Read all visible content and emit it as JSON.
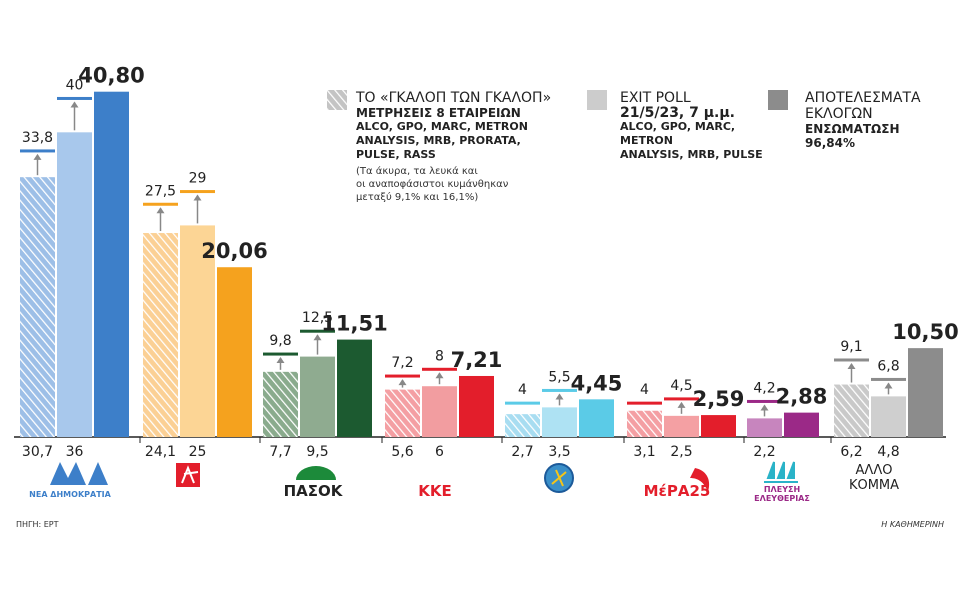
{
  "chart_data": {
    "type": "range-bar",
    "categories": [
      "ΝΕΑ ΔΗΜΟΚΡΑΤΙΑ",
      null,
      "ΠΑΣΟΚ",
      "ΚΚΕ",
      null,
      "ΜέΡΑ25",
      "ΠΛΕΥΣΗ ΕΛΕΥΘΕΡΙΑΣ",
      "ΑΛΛΟ ΚΟΜΜΑ"
    ],
    "ylim": [
      0,
      41
    ],
    "series": [
      {
        "name": "ΤΟ «ΓΚΑΛΟΠ ΤΩΝ ΓΚΑΛΟΠ»",
        "subtitle": "ΜΕΤΡΗΣΕΙΣ 8 ΕΤΑΙΡΕΙΩΝ",
        "details": [
          "ALCO, GPO, MARC, METRON",
          "ANALYSIS, MRB, PRORATA,",
          "PULSE, RASS"
        ],
        "note": [
          "(Τα άκυρα, τα λευκά και",
          "οι αναποφάσιστοι κυμάνθηκαν",
          "μεταξύ 9,1% και 16,1%)"
        ],
        "color": "#c4c4c4",
        "hatched": true,
        "colors": [
          "#9dbfe7",
          "#fbd095",
          "#8aab8d",
          "#f49fa3",
          "#a8ddf1",
          "#f49fa3",
          null,
          "#c9c9c9"
        ],
        "marker_colors": [
          "#3d7fc9",
          "#f5a21e",
          "#1c5a30",
          "#e31e2b",
          "#5bcbe7",
          "#e31e2b",
          null,
          "#8c8c8c"
        ],
        "low": [
          30.7,
          24.1,
          7.7,
          5.6,
          2.7,
          3.1,
          null,
          6.2
        ],
        "low_labels": [
          "30,7",
          "24,1",
          "7,7",
          "5,6",
          "2,7",
          "3,1",
          null,
          "6,2"
        ],
        "high": [
          33.8,
          27.5,
          9.8,
          7.2,
          4,
          4,
          null,
          9.1
        ],
        "high_labels": [
          "33,8",
          "27,5",
          "9,8",
          "7,2",
          "4",
          "4",
          null,
          "9,1"
        ]
      },
      {
        "name": "EXIT POLL",
        "subtitle": "21/5/23, 7 μ.μ.",
        "details": [
          "ALCO, GPO, MARC, METRON",
          "ANALYSIS, MRB, PULSE"
        ],
        "color": "#cccccc",
        "hatched": false,
        "colors": [
          "#a8c8ec",
          "#fcd595",
          "#8fab90",
          "#f29da0",
          "#aee2f3",
          "#f4a0a3",
          "#c785be",
          "#cfcfcf"
        ],
        "marker_colors": [
          "#3d7fc9",
          "#f5a21e",
          "#1c5a30",
          "#e31e2b",
          "#5bcbe7",
          "#e31e2b",
          "#9b2987",
          "#8c8c8c"
        ],
        "low": [
          36,
          25,
          9.5,
          6,
          3.5,
          2.5,
          2.2,
          4.8
        ],
        "low_labels": [
          "36",
          "25",
          "9,5",
          "6",
          "3,5",
          "2,5",
          "2,2",
          "4,8"
        ],
        "high": [
          40,
          29,
          12.5,
          8,
          5.5,
          4.5,
          4.2,
          6.8
        ],
        "high_labels": [
          "40",
          "29",
          "12,5",
          "8",
          "5,5",
          "4,5",
          "4,2",
          "6,8"
        ]
      },
      {
        "name": "ΑΠΟΤΕΛΕΣΜΑΤΑ ΕΚΛΟΓΩΝ",
        "subtitle": "ΕΝΣΩΜΑΤΩΣΗ 96,84%",
        "color": "#8c8c8c",
        "hatched": false,
        "colors": [
          "#3d7fc9",
          "#f5a21e",
          "#1c5a30",
          "#e31e2b",
          "#5bcbe7",
          "#e31e2b",
          "#9b2987",
          "#8c8c8c"
        ],
        "values": [
          40.8,
          20.06,
          11.51,
          7.21,
          4.45,
          2.59,
          2.88,
          10.5
        ],
        "value_labels": [
          "40,80",
          "20,06",
          "11,51",
          "7,21",
          "4,45",
          "2,59",
          "2,88",
          "10,50"
        ]
      }
    ],
    "source": "ΠΗΓΗ: ΕΡΤ",
    "publisher": "Η ΚΑΘΗΜΕΡΙΝΗ"
  }
}
